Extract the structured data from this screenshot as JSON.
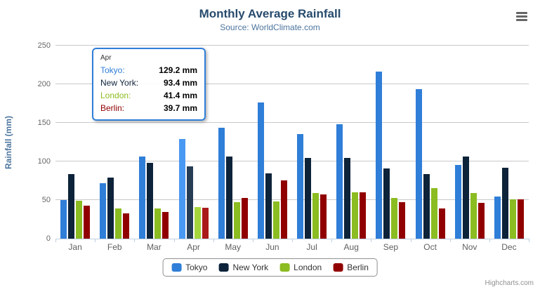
{
  "header": {
    "title": "Monthly Average Rainfall",
    "subtitle": "Source: WorldClimate.com"
  },
  "credits_label": "Highcharts.com",
  "colors": {
    "title": "#274b6d",
    "subtitle": "#4d759e",
    "grid": "#c9c9c9",
    "axis_line": "#c0d0e0",
    "axis_label": "#606060",
    "tooltip_border": "#2f7ed8"
  },
  "chart_data": {
    "type": "bar",
    "title": "Monthly Average Rainfall",
    "subtitle": "Source: WorldClimate.com",
    "categories": [
      "Jan",
      "Feb",
      "Mar",
      "Apr",
      "May",
      "Jun",
      "Jul",
      "Aug",
      "Sep",
      "Oct",
      "Nov",
      "Dec"
    ],
    "series": [
      {
        "name": "Tokyo",
        "color": "#2f7ed8",
        "hover_color": "#4998f2",
        "values": [
          49.9,
          71.5,
          106.4,
          129.2,
          144.0,
          176.0,
          135.6,
          148.5,
          216.4,
          194.1,
          95.6,
          54.4
        ]
      },
      {
        "name": "New York",
        "color": "#0d233a",
        "hover_color": "#273d54",
        "values": [
          83.6,
          78.8,
          98.5,
          93.4,
          106.0,
          84.5,
          105.0,
          104.3,
          91.2,
          83.5,
          106.6,
          92.3
        ]
      },
      {
        "name": "London",
        "color": "#8bbc21",
        "hover_color": "#a5d63b",
        "values": [
          48.9,
          38.8,
          39.3,
          41.4,
          47.0,
          48.3,
          59.0,
          59.6,
          52.4,
          65.2,
          59.3,
          51.2
        ]
      },
      {
        "name": "Berlin",
        "color": "#910000",
        "hover_color": "#ab1a1a",
        "values": [
          42.4,
          33.2,
          34.5,
          39.7,
          52.6,
          75.5,
          57.4,
          60.4,
          47.6,
          39.1,
          46.8,
          51.1
        ]
      }
    ],
    "xlabel": "",
    "ylabel": "Rainfall (mm)",
    "ylim": [
      0,
      250
    ],
    "yticks": [
      0,
      50,
      100,
      150,
      200,
      250
    ],
    "grid": true,
    "legend_position": "bottom",
    "hovered_category": "Apr",
    "hovered_index": 3
  },
  "tooltip": {
    "header": "Apr",
    "rows": [
      {
        "label": "Tokyo:",
        "value": "129.2 mm"
      },
      {
        "label": "New York:",
        "value": "93.4 mm"
      },
      {
        "label": "London:",
        "value": "41.4 mm"
      },
      {
        "label": "Berlin:",
        "value": "39.7 mm"
      }
    ]
  },
  "legend": {
    "items": [
      "Tokyo",
      "New York",
      "London",
      "Berlin"
    ]
  }
}
